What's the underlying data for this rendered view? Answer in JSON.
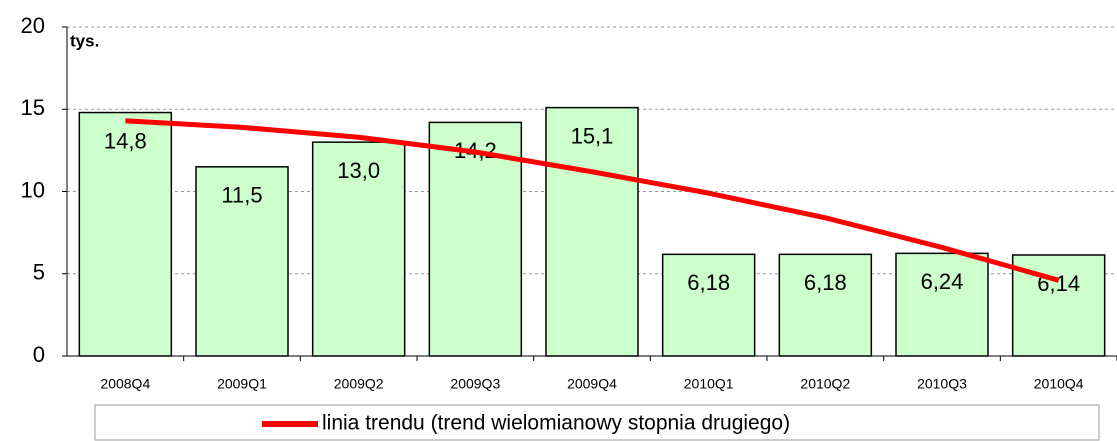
{
  "chart_data": {
    "type": "bar",
    "unit_label": "tys.",
    "categories": [
      "2008Q4",
      "2009Q1",
      "2009Q2",
      "2009Q3",
      "2009Q4",
      "2010Q1",
      "2010Q2",
      "2010Q3",
      "2010Q4"
    ],
    "values": [
      14.8,
      11.5,
      13.0,
      14.2,
      15.1,
      6.18,
      6.18,
      6.24,
      6.14
    ],
    "value_labels": [
      "14,8",
      "11,5",
      "13,0",
      "14,2",
      "15,1",
      "6,18",
      "6,18",
      "6,24",
      "6,14"
    ],
    "color": "#ccffcc",
    "series": [
      {
        "name": "linia trendu (trend wielomianowy stopnia drugiego)",
        "color": "#ff0000",
        "values": [
          14.3,
          13.9,
          13.3,
          12.4,
          11.2,
          9.9,
          8.4,
          6.6,
          4.6
        ]
      }
    ],
    "ylim": [
      0,
      20
    ],
    "yticks": [
      0,
      5,
      10,
      15,
      20
    ],
    "grid": true
  }
}
